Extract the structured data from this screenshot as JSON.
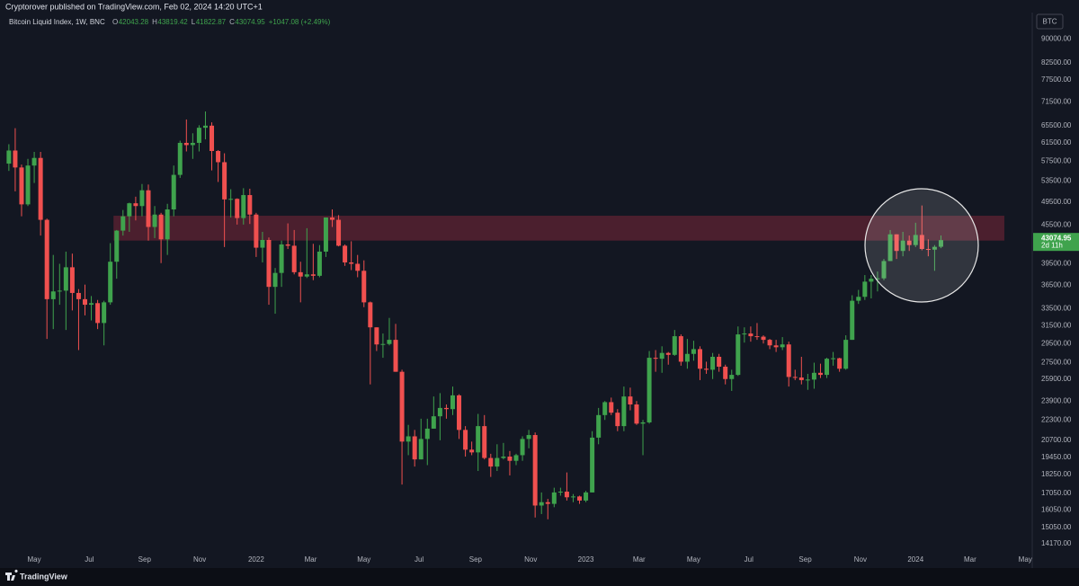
{
  "header": "Cryptorover published on TradingView.com, Feb 02, 2024 14:20 UTC+1",
  "footer": "TradingView",
  "chart_data": {
    "type": "candlestick",
    "title": "Bitcoin Liquid Index, 1W, BNC",
    "legend_items": [
      {
        "key": "O",
        "value": "42043.28"
      },
      {
        "key": "H",
        "value": "43819.42"
      },
      {
        "key": "L",
        "value": "41822.87"
      },
      {
        "key": "C",
        "value": "43074.95"
      },
      {
        "key": "",
        "value": "+1047.08 (+2.49%)"
      }
    ],
    "currency": "BTC",
    "countdown": "2d 11h",
    "log_scale": true,
    "grid": false,
    "up_color": "#3fa34d",
    "down_color": "#f0504f",
    "zone": {
      "low": 43000,
      "high": 47100,
      "from": 16.5,
      "to": 157,
      "color": "rgba(180,45,70,0.35)"
    },
    "xlim": [
      -1.4,
      161.4
    ],
    "xticks": [
      {
        "value": 4,
        "label": "May"
      },
      {
        "value": 12.7,
        "label": "Jul"
      },
      {
        "value": 21.4,
        "label": "Sep"
      },
      {
        "value": 30.1,
        "label": "Nov"
      },
      {
        "value": 39,
        "label": "2022"
      },
      {
        "value": 47.6,
        "label": "Mar"
      },
      {
        "value": 56,
        "label": "May"
      },
      {
        "value": 64.7,
        "label": "Jul"
      },
      {
        "value": 73.6,
        "label": "Sep"
      },
      {
        "value": 82.3,
        "label": "Nov"
      },
      {
        "value": 91,
        "label": "2023"
      },
      {
        "value": 99.4,
        "label": "Mar"
      },
      {
        "value": 108,
        "label": "May"
      },
      {
        "value": 116.7,
        "label": "Jul"
      },
      {
        "value": 125.6,
        "label": "Sep"
      },
      {
        "value": 134.3,
        "label": "Nov"
      },
      {
        "value": 143,
        "label": "2024"
      },
      {
        "value": 151.6,
        "label": "Mar"
      },
      {
        "value": 160.3,
        "label": "May"
      }
    ],
    "ylim": [
      13400,
      97800
    ],
    "yticks": [
      {
        "value": 90000,
        "label": "90000.00"
      },
      {
        "value": 82500,
        "label": "82500.00"
      },
      {
        "value": 77500,
        "label": "77500.00"
      },
      {
        "value": 71500,
        "label": "71500.00"
      },
      {
        "value": 65500,
        "label": "65500.00"
      },
      {
        "value": 61500,
        "label": "61500.00"
      },
      {
        "value": 57500,
        "label": "57500.00"
      },
      {
        "value": 53500,
        "label": "53500.00"
      },
      {
        "value": 49500,
        "label": "49500.00"
      },
      {
        "value": 45500,
        "label": "45500.00"
      },
      {
        "value": 39500,
        "label": "39500.00"
      },
      {
        "value": 36500,
        "label": "36500.00"
      },
      {
        "value": 33500,
        "label": "33500.00"
      },
      {
        "value": 31500,
        "label": "31500.00"
      },
      {
        "value": 29500,
        "label": "29500.00"
      },
      {
        "value": 27500,
        "label": "27500.00"
      },
      {
        "value": 25900,
        "label": "25900.00"
      },
      {
        "value": 23900,
        "label": "23900.00"
      },
      {
        "value": 22300,
        "label": "22300.00"
      },
      {
        "value": 20700,
        "label": "20700.00"
      },
      {
        "value": 19450,
        "label": "19450.00"
      },
      {
        "value": 18250,
        "label": "18250.00"
      },
      {
        "value": 17050,
        "label": "17050.00"
      },
      {
        "value": 16050,
        "label": "16050.00"
      },
      {
        "value": 15050,
        "label": "15050.00"
      },
      {
        "value": 14170,
        "label": "14170.00"
      }
    ],
    "ohlc": [
      [
        57000,
        61200,
        55500,
        59800
      ],
      [
        59800,
        64900,
        51500,
        56200
      ],
      [
        56200,
        56800,
        47000,
        49100
      ],
      [
        49100,
        58000,
        48800,
        56600
      ],
      [
        56600,
        59500,
        53100,
        58200
      ],
      [
        58200,
        59500,
        43800,
        46400
      ],
      [
        46400,
        46600,
        30000,
        34700
      ],
      [
        34700,
        40800,
        31100,
        35700
      ],
      [
        35700,
        39500,
        34000,
        35800
      ],
      [
        35800,
        41300,
        31000,
        39000
      ],
      [
        39000,
        41000,
        33300,
        35500
      ],
      [
        35500,
        36000,
        28800,
        34700
      ],
      [
        34700,
        36600,
        32700,
        34000
      ],
      [
        34000,
        35100,
        32100,
        34200
      ],
      [
        34200,
        34600,
        31100,
        31800
      ],
      [
        31800,
        34500,
        29300,
        34300
      ],
      [
        34300,
        42600,
        34000,
        39800
      ],
      [
        39800,
        44700,
        37400,
        44600
      ],
      [
        44600,
        48100,
        43800,
        47000
      ],
      [
        47000,
        49400,
        44400,
        49300
      ],
      [
        49300,
        50500,
        46300,
        48800
      ],
      [
        48800,
        52900,
        47000,
        51700
      ],
      [
        51700,
        52800,
        43000,
        45200
      ],
      [
        45200,
        48800,
        43400,
        47300
      ],
      [
        47300,
        47600,
        39600,
        43200
      ],
      [
        43200,
        49200,
        40800,
        48200
      ],
      [
        48200,
        56600,
        47000,
        54700
      ],
      [
        54700,
        62000,
        54100,
        61500
      ],
      [
        61500,
        67000,
        59600,
        61000
      ],
      [
        61000,
        63700,
        58000,
        61500
      ],
      [
        61500,
        65600,
        59600,
        65000
      ],
      [
        65000,
        69000,
        62300,
        65500
      ],
      [
        65500,
        66300,
        55600,
        59700
      ],
      [
        59700,
        59900,
        53300,
        57300
      ],
      [
        57300,
        59200,
        42000,
        50000
      ],
      [
        50000,
        51900,
        46800,
        50100
      ],
      [
        50100,
        50200,
        45600,
        46700
      ],
      [
        46700,
        52100,
        45600,
        50800
      ],
      [
        50800,
        52000,
        45700,
        47300
      ],
      [
        47300,
        47600,
        40500,
        41900
      ],
      [
        41900,
        44400,
        39700,
        43100
      ],
      [
        43100,
        43500,
        34000,
        36300
      ],
      [
        36300,
        38900,
        32900,
        38200
      ],
      [
        38200,
        43000,
        36300,
        42400
      ],
      [
        42400,
        45800,
        41700,
        42200
      ],
      [
        42200,
        44700,
        38000,
        38300
      ],
      [
        38300,
        39800,
        34300,
        37700
      ],
      [
        37700,
        45000,
        37500,
        38000
      ],
      [
        38000,
        42500,
        37200,
        37800
      ],
      [
        37800,
        42300,
        37600,
        41300
      ],
      [
        41300,
        46800,
        40500,
        46800
      ],
      [
        46800,
        48200,
        45200,
        46400
      ],
      [
        46400,
        47200,
        42100,
        42200
      ],
      [
        42200,
        42400,
        39200,
        39700
      ],
      [
        39700,
        42900,
        38600,
        39500
      ],
      [
        39500,
        40800,
        37600,
        38500
      ],
      [
        38500,
        40000,
        33700,
        34300
      ],
      [
        34300,
        34400,
        25400,
        31300
      ],
      [
        31300,
        31300,
        28700,
        29400
      ],
      [
        29400,
        30600,
        28000,
        29450
      ],
      [
        29450,
        32400,
        29300,
        29900
      ],
      [
        29900,
        31700,
        26600,
        26600
      ],
      [
        26600,
        26800,
        17600,
        20600
      ],
      [
        20600,
        21900,
        19600,
        21000
      ],
      [
        21000,
        21500,
        18800,
        19300
      ],
      [
        19300,
        22400,
        19300,
        20800
      ],
      [
        20800,
        22400,
        18900,
        21600
      ],
      [
        21600,
        24300,
        21600,
        22600
      ],
      [
        22600,
        24600,
        20700,
        23300
      ],
      [
        23300,
        23600,
        22400,
        23200
      ],
      [
        23200,
        25200,
        22700,
        24400
      ],
      [
        24400,
        24500,
        20800,
        21500
      ],
      [
        21500,
        21800,
        19500,
        20000
      ],
      [
        20000,
        20600,
        19600,
        19800
      ],
      [
        19800,
        22800,
        18500,
        21800
      ],
      [
        21800,
        22700,
        19300,
        19400
      ],
      [
        19400,
        19700,
        18100,
        18800
      ],
      [
        18800,
        20400,
        18500,
        19400
      ],
      [
        19400,
        20500,
        19300,
        19500
      ],
      [
        19500,
        19900,
        18200,
        19200
      ],
      [
        19200,
        19700,
        18900,
        19600
      ],
      [
        19600,
        21000,
        19200,
        20800
      ],
      [
        20800,
        21500,
        20100,
        21100
      ],
      [
        21100,
        21300,
        15600,
        16300
      ],
      [
        16300,
        17100,
        15800,
        16500
      ],
      [
        16500,
        16700,
        15500,
        16400
      ],
      [
        16400,
        17400,
        16200,
        17100
      ],
      [
        17100,
        17400,
        16900,
        17150
      ],
      [
        17150,
        18400,
        16600,
        16800
      ],
      [
        16800,
        17000,
        16500,
        16850
      ],
      [
        16850,
        16900,
        16400,
        16600
      ],
      [
        16600,
        17200,
        16500,
        17100
      ],
      [
        17100,
        21400,
        17100,
        20900
      ],
      [
        20900,
        23300,
        20400,
        22700
      ],
      [
        22700,
        23900,
        22300,
        23800
      ],
      [
        23800,
        24200,
        22700,
        22900
      ],
      [
        22900,
        23200,
        21400,
        21800
      ],
      [
        21800,
        25200,
        21400,
        24300
      ],
      [
        24300,
        25100,
        23100,
        23600
      ],
      [
        23600,
        23900,
        21900,
        22000
      ],
      [
        22000,
        22300,
        19600,
        22100
      ],
      [
        22100,
        28700,
        22000,
        28000
      ],
      [
        28000,
        28800,
        26600,
        27900
      ],
      [
        27900,
        29200,
        26500,
        28500
      ],
      [
        28500,
        28600,
        27300,
        28300
      ],
      [
        28300,
        31000,
        28200,
        30300
      ],
      [
        30300,
        30500,
        27200,
        27600
      ],
      [
        27600,
        30000,
        26900,
        28400
      ],
      [
        28400,
        29800,
        27700,
        28900
      ],
      [
        28900,
        29200,
        25800,
        26900
      ],
      [
        26900,
        27600,
        26400,
        26800
      ],
      [
        26800,
        28500,
        25900,
        28100
      ],
      [
        28100,
        28400,
        26600,
        27100
      ],
      [
        27100,
        27300,
        25400,
        25900
      ],
      [
        25900,
        26800,
        24800,
        26300
      ],
      [
        26300,
        31400,
        26200,
        30500
      ],
      [
        30500,
        31300,
        29600,
        30600
      ],
      [
        30600,
        31400,
        29700,
        30300
      ],
      [
        30300,
        31800,
        29900,
        30250
      ],
      [
        30250,
        30400,
        29500,
        29900
      ],
      [
        29900,
        30000,
        28900,
        29300
      ],
      [
        29300,
        29900,
        28600,
        29100
      ],
      [
        29100,
        30200,
        28800,
        29400
      ],
      [
        29400,
        29700,
        25200,
        26100
      ],
      [
        26100,
        26800,
        25800,
        26050
      ],
      [
        26050,
        28100,
        25400,
        25800
      ],
      [
        25800,
        26400,
        24900,
        25850
      ],
      [
        25850,
        27500,
        25000,
        26500
      ],
      [
        26500,
        27400,
        26000,
        26300
      ],
      [
        26300,
        28000,
        26000,
        27900
      ],
      [
        27900,
        28600,
        27200,
        27950
      ],
      [
        27950,
        28000,
        26600,
        26900
      ],
      [
        26900,
        30400,
        26800,
        29900
      ],
      [
        29900,
        35200,
        29900,
        34500
      ],
      [
        34500,
        35900,
        34100,
        35000
      ],
      [
        35000,
        37900,
        34600,
        37000
      ],
      [
        37000,
        37900,
        34800,
        37400
      ],
      [
        37400,
        38400,
        35700,
        37450
      ],
      [
        37450,
        40200,
        37200,
        39900
      ],
      [
        39900,
        44700,
        39900,
        44000
      ],
      [
        44000,
        44000,
        40200,
        41400
      ],
      [
        41400,
        44400,
        40600,
        43000
      ],
      [
        43000,
        43800,
        41400,
        42300
      ],
      [
        42300,
        45900,
        42000,
        43900
      ],
      [
        43900,
        48900,
        41500,
        41700
      ],
      [
        41700,
        43200,
        40600,
        41600
      ],
      [
        41600,
        42300,
        38500,
        42027.87
      ],
      [
        42043.28,
        43819.42,
        41822.87,
        43074.95
      ]
    ]
  }
}
